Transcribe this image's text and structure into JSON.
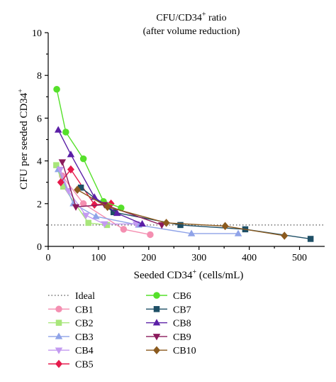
{
  "chart_data": {
    "type": "line",
    "title": "CFU/CD34",
    "title_superscript": "+",
    "title_suffix": " ratio",
    "subtitle": "(after volume reduction)",
    "xlabel": "Seeded CD34",
    "xlabel_superscript": "+",
    "xlabel_suffix": " (cells/mL)",
    "ylabel": "CFU per seeded CD34",
    "ylabel_superscript": "+",
    "xlim": [
      0,
      550
    ],
    "ylim": [
      0,
      10
    ],
    "xticks": [
      "0",
      "100",
      "200",
      "300",
      "400",
      "500"
    ],
    "yticks": [
      "0",
      "2",
      "4",
      "6",
      "8",
      "10"
    ],
    "grid": false,
    "legend_position": "bottom-left, two columns",
    "reference_line": {
      "name": "Ideal",
      "y": 1,
      "style": "dotted",
      "color": "#555555"
    },
    "series": [
      {
        "name": "CB1",
        "color": "#f48fb1",
        "marker": "circle",
        "x": [
          28,
          70,
          150,
          203
        ],
        "y": [
          3.3,
          2.0,
          0.8,
          0.55
        ]
      },
      {
        "name": "CB2",
        "color": "#a8e67a",
        "marker": "square",
        "x": [
          16,
          30,
          80,
          117
        ],
        "y": [
          3.8,
          2.8,
          1.1,
          1.0
        ]
      },
      {
        "name": "CB3",
        "color": "#8fa3e8",
        "marker": "triangle-up",
        "x": [
          20,
          50,
          95,
          180,
          285,
          378
        ],
        "y": [
          3.6,
          2.0,
          1.4,
          1.0,
          0.6,
          0.6
        ]
      },
      {
        "name": "CB4",
        "color": "#c39af0",
        "marker": "triangle-down",
        "x": [
          24,
          40,
          75,
          112,
          175
        ],
        "y": [
          3.6,
          2.6,
          1.45,
          1.05,
          1.05
        ]
      },
      {
        "name": "CB5",
        "color": "#e6194b",
        "marker": "diamond",
        "x": [
          25,
          45,
          92,
          125
        ],
        "y": [
          3.0,
          3.6,
          1.95,
          2.0
        ]
      },
      {
        "name": "CB6",
        "color": "#55e02a",
        "marker": "circle",
        "x": [
          17,
          35,
          70,
          110,
          145
        ],
        "y": [
          7.35,
          5.35,
          4.1,
          2.1,
          1.8
        ]
      },
      {
        "name": "CB7",
        "color": "#1e4f66",
        "marker": "square",
        "x": [
          65,
          130,
          263,
          392,
          522
        ],
        "y": [
          2.75,
          1.6,
          1.0,
          0.8,
          0.35
        ]
      },
      {
        "name": "CB8",
        "color": "#5b1fa6",
        "marker": "triangle-up",
        "x": [
          20,
          45,
          92,
          137,
          187
        ],
        "y": [
          5.45,
          4.3,
          2.3,
          1.55,
          1.05
        ]
      },
      {
        "name": "CB9",
        "color": "#8b1a5c",
        "marker": "triangle-down",
        "x": [
          28,
          55,
          112,
          226
        ],
        "y": [
          3.95,
          1.85,
          1.95,
          1.0
        ]
      },
      {
        "name": "CB10",
        "color": "#8b5a1e",
        "marker": "diamond",
        "x": [
          58,
          118,
          235,
          352,
          470
        ],
        "y": [
          2.65,
          1.85,
          1.1,
          0.95,
          0.5
        ]
      }
    ],
    "legend_left": [
      "Ideal",
      "CB1",
      "CB2",
      "CB3",
      "CB4",
      "CB5"
    ],
    "legend_right": [
      "CB6",
      "CB7",
      "CB8",
      "CB9",
      "CB10"
    ]
  }
}
